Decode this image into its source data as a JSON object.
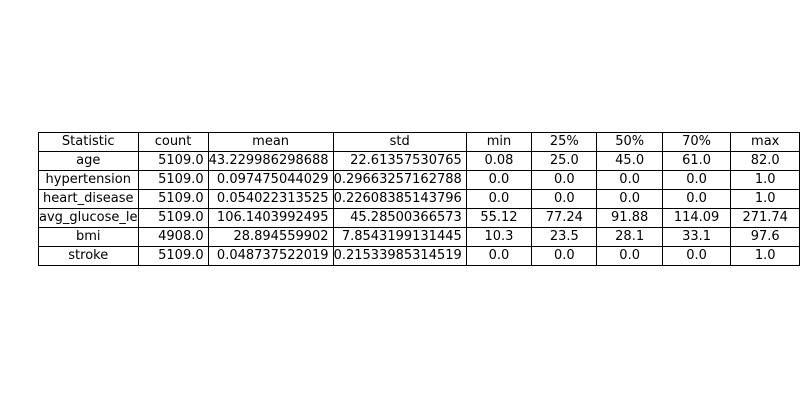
{
  "chart_data": {
    "type": "table",
    "columns": [
      "Statistic",
      "count",
      "mean",
      "std",
      "min",
      "25%",
      "50%",
      "70%",
      "max"
    ],
    "rows": [
      {
        "label": "age",
        "count": "5109.0",
        "mean": "43.229986298688",
        "std": "22.61357530765",
        "min": "0.08",
        "25%": "25.0",
        "50%": "45.0",
        "70%": "61.0",
        "max": "82.0"
      },
      {
        "label": "hypertension",
        "count": "5109.0",
        "mean": "0.097475044029",
        "std": "0.29663257162788",
        "min": "0.0",
        "25%": "0.0",
        "50%": "0.0",
        "70%": "0.0",
        "max": "1.0"
      },
      {
        "label": "heart_disease",
        "count": "5109.0",
        "mean": "0.054022313525",
        "std": "0.22608385143796",
        "min": "0.0",
        "25%": "0.0",
        "50%": "0.0",
        "70%": "0.0",
        "max": "1.0"
      },
      {
        "label": "avg_glucose_le",
        "count": "5109.0",
        "mean": "106.1403992495",
        "std": "45.28500366573",
        "min": "55.12",
        "25%": "77.24",
        "50%": "91.88",
        "70%": "114.09",
        "max": "271.74"
      },
      {
        "label": "bmi",
        "count": "4908.0",
        "mean": "28.894559902",
        "std": "7.8543199131445",
        "min": "10.3",
        "25%": "23.5",
        "50%": "28.1",
        "70%": "33.1",
        "max": "97.6"
      },
      {
        "label": "stroke",
        "count": "5109.0",
        "mean": "0.048737522019",
        "std": "0.21533985314519",
        "min": "0.0",
        "25%": "0.0",
        "50%": "0.0",
        "70%": "0.0",
        "max": "1.0"
      }
    ]
  }
}
